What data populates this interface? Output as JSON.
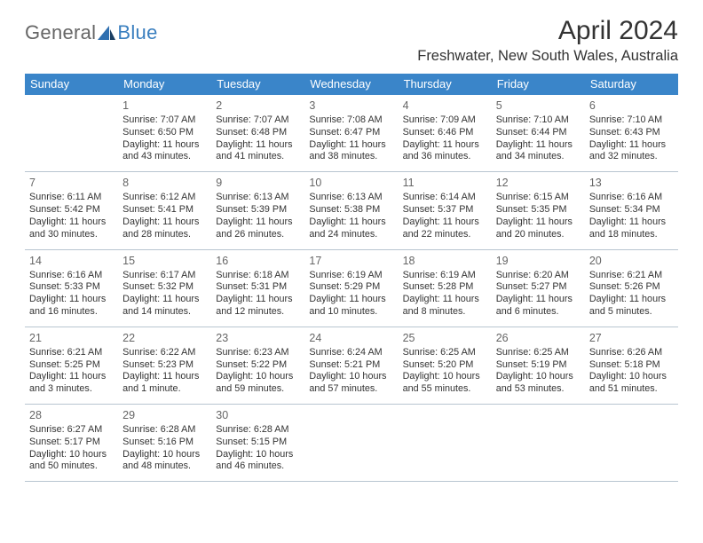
{
  "logo": {
    "text1": "General",
    "text2": "Blue"
  },
  "title": "April 2024",
  "location": "Freshwater, New South Wales, Australia",
  "colors": {
    "header_bg": "#3a85c9",
    "header_text": "#ffffff",
    "page_bg": "#ffffff",
    "text": "#333333",
    "grid_line": "#b8c5d0",
    "logo_blue": "#3a7fbf",
    "logo_gray": "#666666"
  },
  "days_of_week": [
    "Sunday",
    "Monday",
    "Tuesday",
    "Wednesday",
    "Thursday",
    "Friday",
    "Saturday"
  ],
  "weeks": [
    [
      null,
      {
        "n": "1",
        "sr": "Sunrise: 7:07 AM",
        "ss": "Sunset: 6:50 PM",
        "dl": "Daylight: 11 hours and 43 minutes."
      },
      {
        "n": "2",
        "sr": "Sunrise: 7:07 AM",
        "ss": "Sunset: 6:48 PM",
        "dl": "Daylight: 11 hours and 41 minutes."
      },
      {
        "n": "3",
        "sr": "Sunrise: 7:08 AM",
        "ss": "Sunset: 6:47 PM",
        "dl": "Daylight: 11 hours and 38 minutes."
      },
      {
        "n": "4",
        "sr": "Sunrise: 7:09 AM",
        "ss": "Sunset: 6:46 PM",
        "dl": "Daylight: 11 hours and 36 minutes."
      },
      {
        "n": "5",
        "sr": "Sunrise: 7:10 AM",
        "ss": "Sunset: 6:44 PM",
        "dl": "Daylight: 11 hours and 34 minutes."
      },
      {
        "n": "6",
        "sr": "Sunrise: 7:10 AM",
        "ss": "Sunset: 6:43 PM",
        "dl": "Daylight: 11 hours and 32 minutes."
      }
    ],
    [
      {
        "n": "7",
        "sr": "Sunrise: 6:11 AM",
        "ss": "Sunset: 5:42 PM",
        "dl": "Daylight: 11 hours and 30 minutes."
      },
      {
        "n": "8",
        "sr": "Sunrise: 6:12 AM",
        "ss": "Sunset: 5:41 PM",
        "dl": "Daylight: 11 hours and 28 minutes."
      },
      {
        "n": "9",
        "sr": "Sunrise: 6:13 AM",
        "ss": "Sunset: 5:39 PM",
        "dl": "Daylight: 11 hours and 26 minutes."
      },
      {
        "n": "10",
        "sr": "Sunrise: 6:13 AM",
        "ss": "Sunset: 5:38 PM",
        "dl": "Daylight: 11 hours and 24 minutes."
      },
      {
        "n": "11",
        "sr": "Sunrise: 6:14 AM",
        "ss": "Sunset: 5:37 PM",
        "dl": "Daylight: 11 hours and 22 minutes."
      },
      {
        "n": "12",
        "sr": "Sunrise: 6:15 AM",
        "ss": "Sunset: 5:35 PM",
        "dl": "Daylight: 11 hours and 20 minutes."
      },
      {
        "n": "13",
        "sr": "Sunrise: 6:16 AM",
        "ss": "Sunset: 5:34 PM",
        "dl": "Daylight: 11 hours and 18 minutes."
      }
    ],
    [
      {
        "n": "14",
        "sr": "Sunrise: 6:16 AM",
        "ss": "Sunset: 5:33 PM",
        "dl": "Daylight: 11 hours and 16 minutes."
      },
      {
        "n": "15",
        "sr": "Sunrise: 6:17 AM",
        "ss": "Sunset: 5:32 PM",
        "dl": "Daylight: 11 hours and 14 minutes."
      },
      {
        "n": "16",
        "sr": "Sunrise: 6:18 AM",
        "ss": "Sunset: 5:31 PM",
        "dl": "Daylight: 11 hours and 12 minutes."
      },
      {
        "n": "17",
        "sr": "Sunrise: 6:19 AM",
        "ss": "Sunset: 5:29 PM",
        "dl": "Daylight: 11 hours and 10 minutes."
      },
      {
        "n": "18",
        "sr": "Sunrise: 6:19 AM",
        "ss": "Sunset: 5:28 PM",
        "dl": "Daylight: 11 hours and 8 minutes."
      },
      {
        "n": "19",
        "sr": "Sunrise: 6:20 AM",
        "ss": "Sunset: 5:27 PM",
        "dl": "Daylight: 11 hours and 6 minutes."
      },
      {
        "n": "20",
        "sr": "Sunrise: 6:21 AM",
        "ss": "Sunset: 5:26 PM",
        "dl": "Daylight: 11 hours and 5 minutes."
      }
    ],
    [
      {
        "n": "21",
        "sr": "Sunrise: 6:21 AM",
        "ss": "Sunset: 5:25 PM",
        "dl": "Daylight: 11 hours and 3 minutes."
      },
      {
        "n": "22",
        "sr": "Sunrise: 6:22 AM",
        "ss": "Sunset: 5:23 PM",
        "dl": "Daylight: 11 hours and 1 minute."
      },
      {
        "n": "23",
        "sr": "Sunrise: 6:23 AM",
        "ss": "Sunset: 5:22 PM",
        "dl": "Daylight: 10 hours and 59 minutes."
      },
      {
        "n": "24",
        "sr": "Sunrise: 6:24 AM",
        "ss": "Sunset: 5:21 PM",
        "dl": "Daylight: 10 hours and 57 minutes."
      },
      {
        "n": "25",
        "sr": "Sunrise: 6:25 AM",
        "ss": "Sunset: 5:20 PM",
        "dl": "Daylight: 10 hours and 55 minutes."
      },
      {
        "n": "26",
        "sr": "Sunrise: 6:25 AM",
        "ss": "Sunset: 5:19 PM",
        "dl": "Daylight: 10 hours and 53 minutes."
      },
      {
        "n": "27",
        "sr": "Sunrise: 6:26 AM",
        "ss": "Sunset: 5:18 PM",
        "dl": "Daylight: 10 hours and 51 minutes."
      }
    ],
    [
      {
        "n": "28",
        "sr": "Sunrise: 6:27 AM",
        "ss": "Sunset: 5:17 PM",
        "dl": "Daylight: 10 hours and 50 minutes."
      },
      {
        "n": "29",
        "sr": "Sunrise: 6:28 AM",
        "ss": "Sunset: 5:16 PM",
        "dl": "Daylight: 10 hours and 48 minutes."
      },
      {
        "n": "30",
        "sr": "Sunrise: 6:28 AM",
        "ss": "Sunset: 5:15 PM",
        "dl": "Daylight: 10 hours and 46 minutes."
      },
      null,
      null,
      null,
      null
    ]
  ]
}
